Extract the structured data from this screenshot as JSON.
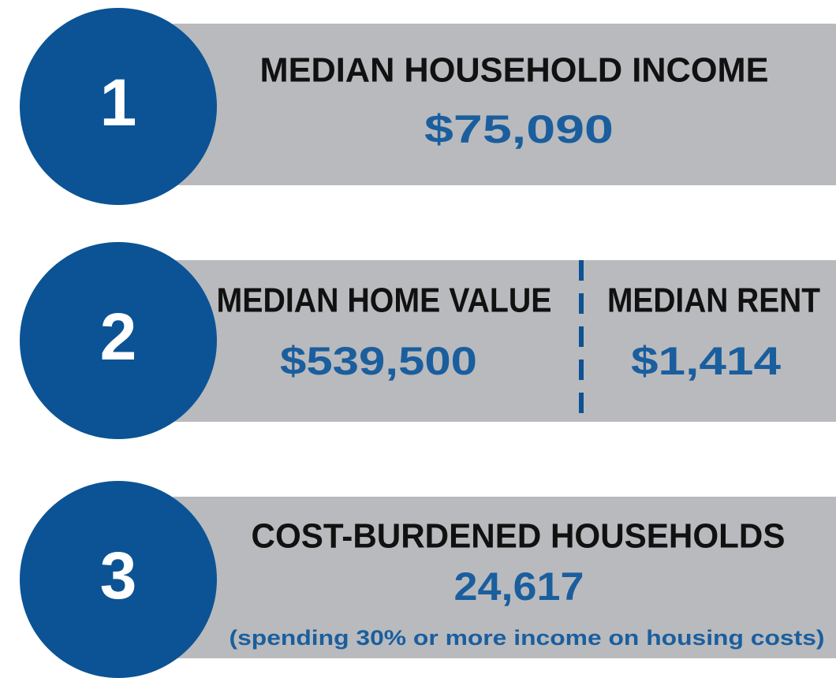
{
  "rows": [
    {
      "number": "1",
      "stats": [
        {
          "label": "MEDIAN HOUSEHOLD INCOME",
          "value": "$75,090"
        }
      ]
    },
    {
      "number": "2",
      "stats": [
        {
          "label": "MEDIAN HOME VALUE",
          "value": "$539,500"
        },
        {
          "label": "MEDIAN RENT",
          "value": "$1,414"
        }
      ]
    },
    {
      "number": "3",
      "stats": [
        {
          "label": "COST-BURDENED HOUSEHOLDS",
          "value": "24,617",
          "note": "(spending 30% or more income on housing costs)"
        }
      ]
    }
  ]
}
